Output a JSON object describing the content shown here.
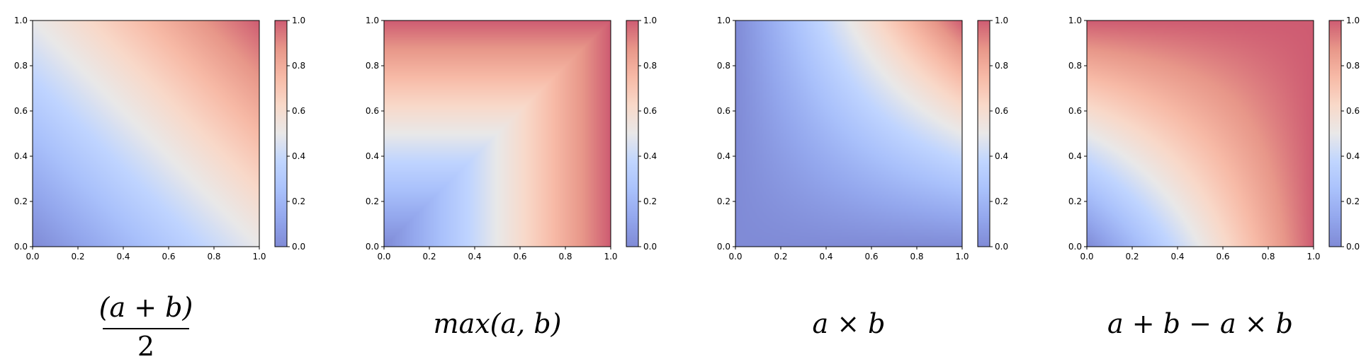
{
  "colormap": {
    "name": "coolwarm",
    "alpha": 0.65,
    "stops": [
      [
        0.0,
        "#3b4cc0"
      ],
      [
        0.125,
        "#5977e3"
      ],
      [
        0.25,
        "#7b9ff9"
      ],
      [
        0.375,
        "#9ebeff"
      ],
      [
        0.5,
        "#dddcdc"
      ],
      [
        0.625,
        "#f5c4ac"
      ],
      [
        0.75,
        "#f39577"
      ],
      [
        0.875,
        "#db5f4a"
      ],
      [
        1.0,
        "#b40426"
      ]
    ]
  },
  "chart_data": [
    {
      "type": "heatmap",
      "function": "mean",
      "caption": "(a + b) / 2",
      "xlim": [
        0,
        1
      ],
      "ylim": [
        0,
        1
      ],
      "xticks": [
        "0.0",
        "0.2",
        "0.4",
        "0.6",
        "0.8",
        "1.0"
      ],
      "yticks": [
        "0.0",
        "0.2",
        "0.4",
        "0.6",
        "0.8",
        "1.0"
      ],
      "colorbar": {
        "range": [
          0,
          1
        ],
        "ticks": [
          "0.0",
          "0.2",
          "0.4",
          "0.6",
          "0.8",
          "1.0"
        ]
      }
    },
    {
      "type": "heatmap",
      "function": "max",
      "caption": "max(a, b)",
      "xlim": [
        0,
        1
      ],
      "ylim": [
        0,
        1
      ],
      "xticks": [
        "0.0",
        "0.2",
        "0.4",
        "0.6",
        "0.8",
        "1.0"
      ],
      "yticks": [
        "0.0",
        "0.2",
        "0.4",
        "0.6",
        "0.8",
        "1.0"
      ],
      "colorbar": {
        "range": [
          0,
          1
        ],
        "ticks": [
          "0.0",
          "0.2",
          "0.4",
          "0.6",
          "0.8",
          "1.0"
        ]
      }
    },
    {
      "type": "heatmap",
      "function": "product",
      "caption": "a × b",
      "xlim": [
        0,
        1
      ],
      "ylim": [
        0,
        1
      ],
      "xticks": [
        "0.0",
        "0.2",
        "0.4",
        "0.6",
        "0.8",
        "1.0"
      ],
      "yticks": [
        "0.0",
        "0.2",
        "0.4",
        "0.6",
        "0.8",
        "1.0"
      ],
      "colorbar": {
        "range": [
          0,
          1
        ],
        "ticks": [
          "0.0",
          "0.2",
          "0.4",
          "0.6",
          "0.8",
          "1.0"
        ]
      }
    },
    {
      "type": "heatmap",
      "function": "probabilistic_sum",
      "caption": "a + b − a × b",
      "xlim": [
        0,
        1
      ],
      "ylim": [
        0,
        1
      ],
      "xticks": [
        "0.0",
        "0.2",
        "0.4",
        "0.6",
        "0.8",
        "1.0"
      ],
      "yticks": [
        "0.0",
        "0.2",
        "0.4",
        "0.6",
        "0.8",
        "1.0"
      ],
      "colorbar": {
        "range": [
          0,
          1
        ],
        "ticks": [
          "0.0",
          "0.2",
          "0.4",
          "0.6",
          "0.8",
          "1.0"
        ]
      }
    }
  ]
}
